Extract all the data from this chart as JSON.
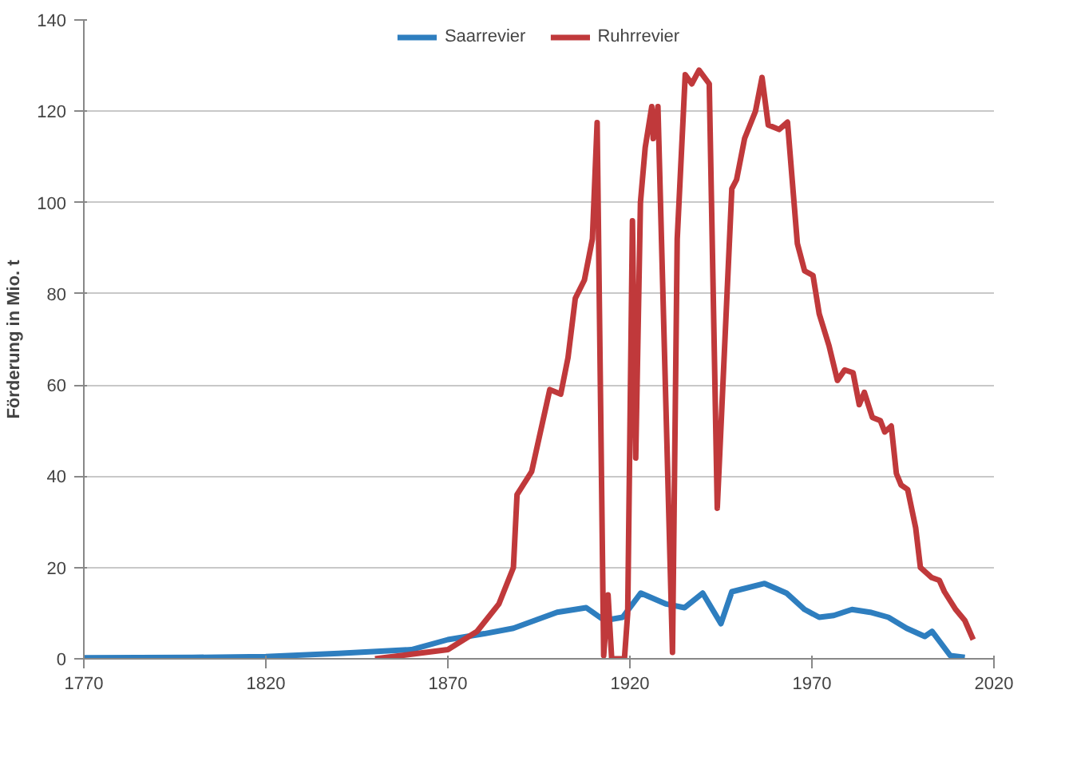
{
  "chart_data": {
    "type": "line",
    "ylabel": "Förderung in Mio. t",
    "xlim": [
      1770,
      2020
    ],
    "xticks": [
      1770,
      1820,
      1870,
      1920,
      1970,
      2020
    ],
    "ylim": [
      0,
      140
    ],
    "yticks": [
      0,
      20,
      40,
      60,
      80,
      100,
      120,
      140
    ],
    "grid": "y",
    "legend": "top",
    "marker": "none",
    "line_style": "solid",
    "series": [
      {
        "name": "Saarrevier",
        "color": "#2e7ebf",
        "x": [
          1770,
          1800,
          1820,
          1840,
          1860,
          1870,
          1880,
          1888,
          1900,
          1908,
          1913,
          1918,
          1923,
          1930,
          1935,
          1940,
          1945,
          1948,
          1957,
          1963,
          1968,
          1972,
          1976,
          1981,
          1986,
          1991,
          1996,
          2001,
          2003,
          2008,
          2012
        ],
        "values": [
          0.2,
          0.3,
          0.5,
          1.2,
          2,
          4.2,
          5.5,
          6.7,
          10.2,
          11.2,
          8.4,
          9.1,
          14.4,
          12,
          11.2,
          14.4,
          7.7,
          14.7,
          16.5,
          14.4,
          10.8,
          9.1,
          9.5,
          10.8,
          10.2,
          9.1,
          6.7,
          4.9,
          6,
          0.7,
          0.3
        ]
      },
      {
        "name": "Ruhrrevier",
        "color": "#c0393b",
        "x": [
          1850,
          1860,
          1870,
          1878,
          1884,
          1888,
          1889,
          1893,
          1898,
          1901,
          1903,
          1905,
          1907.5,
          1909.7,
          1911,
          1912.8,
          1914,
          1915,
          1918.5,
          1919.4,
          1920.7,
          1921.6,
          1922.9,
          1924.2,
          1926,
          1926.4,
          1927.7,
          1931.7,
          1933,
          1935.2,
          1937,
          1939,
          1941.8,
          1944,
          1948,
          1949.3,
          1951.5,
          1954.5,
          1956.3,
          1958,
          1961,
          1963.3,
          1966,
          1968,
          1970.3,
          1972,
          1974.7,
          1977,
          1979,
          1981.3,
          1983,
          1984.4,
          1986.6,
          1988.8,
          1990,
          1991.8,
          1993.2,
          1994.5,
          1996.3,
          1998.5,
          1999.8,
          2002.9,
          2005,
          2006.4,
          2009.5,
          2012,
          2014.3
        ],
        "values": [
          0,
          1,
          2,
          6,
          12,
          20,
          36,
          41,
          59,
          58,
          66,
          79,
          83,
          92,
          117.5,
          0.7,
          14,
          0,
          0,
          10,
          96,
          44,
          100,
          112,
          121,
          114,
          121,
          1.4,
          92,
          128,
          126,
          129,
          126,
          33,
          103,
          105,
          114,
          120,
          127.4,
          117,
          116,
          117.6,
          91,
          85,
          84,
          75.6,
          68.6,
          61,
          63.3,
          62.7,
          55.7,
          58.4,
          52.9,
          52.2,
          49.7,
          51,
          40.6,
          38.1,
          37.1,
          28.7,
          20,
          17.8,
          17.2,
          14.7,
          10.8,
          8.4,
          4.2
        ]
      }
    ]
  }
}
